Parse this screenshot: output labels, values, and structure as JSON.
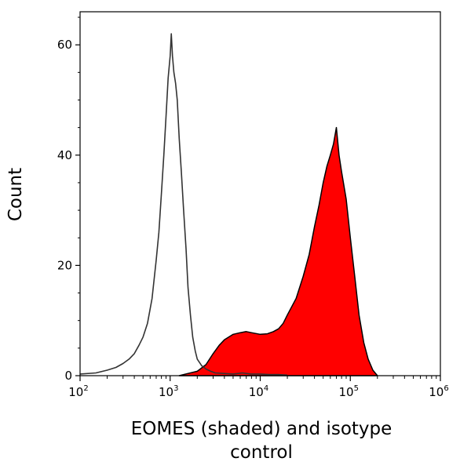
{
  "chart_data": {
    "type": "area",
    "title": "",
    "xlabel_lines": [
      "EOMES (shaded) and isotype",
      "control"
    ],
    "ylabel": "Count",
    "xscale": "log",
    "xlim": [
      100,
      1000000
    ],
    "ylim": [
      0,
      66
    ],
    "x_ticks": [
      {
        "base": "10",
        "exp": "2",
        "value": 100
      },
      {
        "base": "10",
        "exp": "3",
        "value": 1000
      },
      {
        "base": "10",
        "exp": "4",
        "value": 10000
      },
      {
        "base": "10",
        "exp": "5",
        "value": 100000
      },
      {
        "base": "10",
        "exp": "6",
        "value": 1000000
      }
    ],
    "y_ticks": [
      {
        "label": "0",
        "value": 0
      },
      {
        "label": "20",
        "value": 20
      },
      {
        "label": "40",
        "value": 40
      },
      {
        "label": "60",
        "value": 60
      }
    ],
    "grid": false,
    "legend": "none",
    "series": [
      {
        "style": "filled",
        "fill_color": "#ff0000",
        "line_color": "#000000",
        "points": [
          [
            1260,
            0
          ],
          [
            1580,
            0.4
          ],
          [
            2000,
            0.8
          ],
          [
            2500,
            2
          ],
          [
            3000,
            4
          ],
          [
            3500,
            5.5
          ],
          [
            4000,
            6.5
          ],
          [
            5000,
            7.5
          ],
          [
            6000,
            7.8
          ],
          [
            7000,
            8
          ],
          [
            8000,
            7.8
          ],
          [
            10000,
            7.5
          ],
          [
            12000,
            7.6
          ],
          [
            14000,
            8
          ],
          [
            16000,
            8.5
          ],
          [
            18000,
            9.5
          ],
          [
            20000,
            11
          ],
          [
            25000,
            14
          ],
          [
            30000,
            18
          ],
          [
            35000,
            22
          ],
          [
            40000,
            27
          ],
          [
            45000,
            31
          ],
          [
            50000,
            35
          ],
          [
            55000,
            38
          ],
          [
            60000,
            40
          ],
          [
            65000,
            42
          ],
          [
            70000,
            45
          ],
          [
            75000,
            40
          ],
          [
            80000,
            37
          ],
          [
            90000,
            32
          ],
          [
            100000,
            25
          ],
          [
            112000,
            18
          ],
          [
            125000,
            11
          ],
          [
            141000,
            6
          ],
          [
            158000,
            3
          ],
          [
            178000,
            1
          ],
          [
            200000,
            0
          ]
        ]
      },
      {
        "style": "line",
        "line_color": "#333333",
        "points": [
          [
            100,
            0.3
          ],
          [
            150,
            0.5
          ],
          [
            200,
            1
          ],
          [
            250,
            1.5
          ],
          [
            300,
            2.2
          ],
          [
            350,
            3
          ],
          [
            400,
            4
          ],
          [
            450,
            5.5
          ],
          [
            500,
            7
          ],
          [
            560,
            9.5
          ],
          [
            630,
            14
          ],
          [
            700,
            21
          ],
          [
            750,
            26
          ],
          [
            800,
            33
          ],
          [
            850,
            40
          ],
          [
            900,
            47
          ],
          [
            950,
            54
          ],
          [
            1000,
            58
          ],
          [
            1030,
            62
          ],
          [
            1060,
            58
          ],
          [
            1100,
            55
          ],
          [
            1150,
            53
          ],
          [
            1200,
            50
          ],
          [
            1260,
            43
          ],
          [
            1330,
            37
          ],
          [
            1410,
            30
          ],
          [
            1500,
            23
          ],
          [
            1580,
            16
          ],
          [
            1680,
            11
          ],
          [
            1780,
            7
          ],
          [
            1900,
            4.5
          ],
          [
            2000,
            3
          ],
          [
            2240,
            1.8
          ],
          [
            2510,
            1.2
          ],
          [
            2820,
            0.8
          ],
          [
            3160,
            0.5
          ],
          [
            3980,
            0.4
          ],
          [
            5010,
            0.3
          ],
          [
            6310,
            0.5
          ],
          [
            7940,
            0.3
          ],
          [
            10000,
            0.3
          ],
          [
            12600,
            0.2
          ],
          [
            15800,
            0.2
          ],
          [
            20000,
            0.1
          ]
        ]
      }
    ]
  }
}
